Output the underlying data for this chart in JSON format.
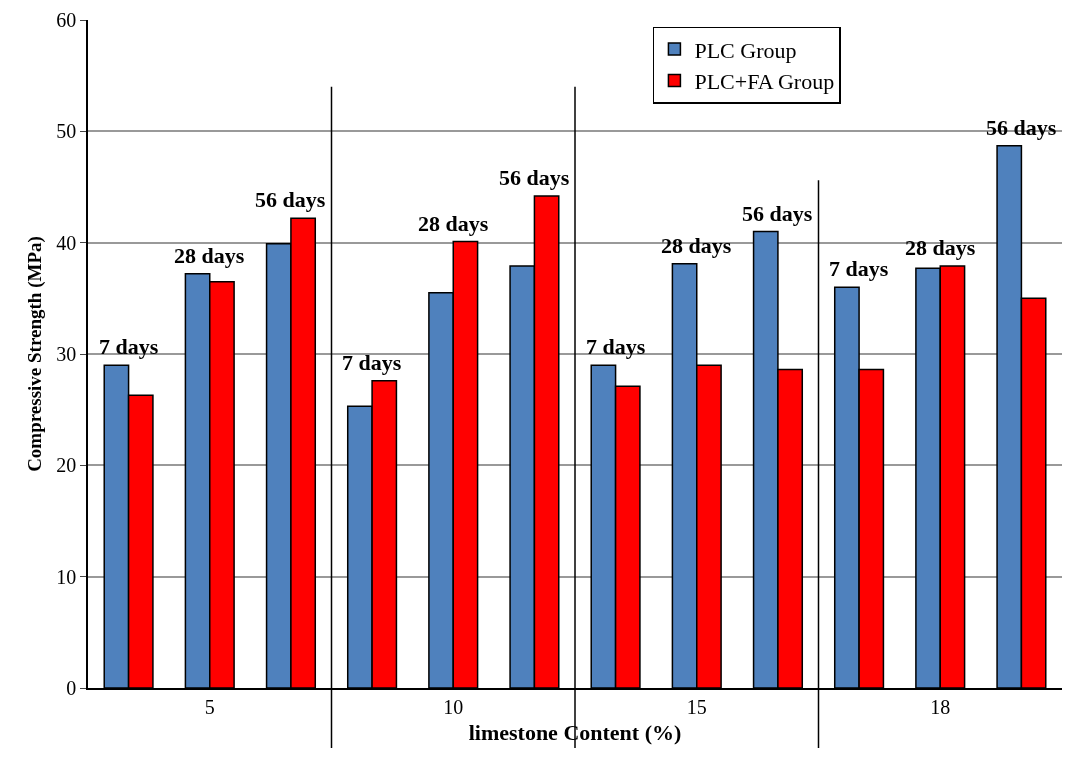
{
  "chart_data": {
    "type": "bar",
    "xlabel": "limestone Content (%)",
    "ylabel": "Compressive Strength (MPa)",
    "categories": [
      null,
      "5",
      null,
      null,
      "10",
      null,
      null,
      "15",
      null,
      null,
      "18",
      null
    ],
    "series": [
      {
        "name": "PLC Group",
        "color": "#4f81bd",
        "values": [
          29.0,
          37.2,
          39.9,
          25.3,
          35.5,
          37.9,
          29.0,
          38.1,
          41.0,
          36.0,
          37.7,
          48.7
        ]
      },
      {
        "name": "PLC+FA Group",
        "color": "#ff0000",
        "values": [
          26.3,
          36.5,
          42.2,
          27.6,
          40.1,
          44.2,
          27.1,
          29.0,
          28.6,
          28.6,
          37.9,
          35.0
        ]
      }
    ],
    "annotations": [
      "7 days",
      "28 days",
      "56 days",
      "7 days",
      "28 days",
      "56 days",
      "7 days",
      "28 days",
      "56 days",
      "7 days",
      "28 days",
      "56 days"
    ],
    "ylim": [
      0,
      60
    ],
    "yticks": [
      0,
      10,
      20,
      30,
      40,
      50,
      60
    ],
    "grid": "y",
    "legend": "top right"
  }
}
